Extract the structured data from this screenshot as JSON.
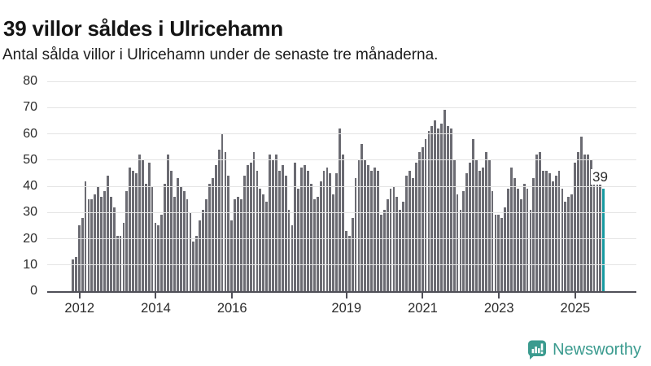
{
  "header": {
    "title": "39 villor såldes i Ulricehamn",
    "subtitle": "Antal sålda villor i Ulricehamn under de senaste tre månaderna."
  },
  "chart_data": {
    "type": "bar",
    "title": "39 villor såldes i Ulricehamn",
    "subtitle": "Antal sålda villor i Ulricehamn under de senaste tre månaderna.",
    "xlabel": "",
    "ylabel": "",
    "ylim": [
      0,
      80
    ],
    "y_ticks": [
      0,
      10,
      20,
      30,
      40,
      50,
      60,
      70,
      80
    ],
    "grid": "horizontal",
    "x_tick_labels": [
      "2012",
      "2014",
      "2016",
      "2019",
      "2021",
      "2023",
      "2025"
    ],
    "x_tick_indices": [
      2,
      26,
      50,
      86,
      110,
      134,
      158
    ],
    "values": [
      12,
      13,
      25,
      28,
      42,
      35,
      35,
      37,
      40,
      36,
      38,
      44,
      36,
      32,
      21,
      21,
      26,
      38,
      47,
      46,
      45,
      52,
      50,
      41,
      49,
      40,
      26,
      25,
      29,
      41,
      52,
      46,
      36,
      43,
      40,
      38,
      35,
      30,
      19,
      21,
      27,
      31,
      35,
      41,
      43,
      48,
      54,
      60,
      53,
      44,
      27,
      35,
      36,
      35,
      44,
      48,
      49,
      53,
      46,
      39,
      37,
      34,
      52,
      50,
      52,
      46,
      48,
      44,
      31,
      25,
      49,
      39,
      47,
      48,
      46,
      41,
      35,
      36,
      42,
      46,
      47,
      45,
      37,
      45,
      62,
      52,
      23,
      21,
      28,
      43,
      50,
      56,
      50,
      48,
      46,
      47,
      46,
      29,
      31,
      35,
      39,
      40,
      36,
      31,
      34,
      44,
      46,
      43,
      49,
      53,
      55,
      58,
      61,
      63,
      65,
      62,
      64,
      69,
      63,
      62,
      50,
      37,
      31,
      38,
      45,
      49,
      58,
      50,
      46,
      47,
      53,
      50,
      38,
      29,
      29,
      28,
      32,
      39,
      47,
      43,
      39,
      35,
      41,
      39,
      31,
      43,
      52,
      53,
      46,
      46,
      45,
      42,
      44,
      46,
      39,
      34,
      36,
      37,
      49,
      53,
      59,
      52,
      52,
      50,
      42,
      42,
      42,
      39
    ],
    "highlight_last": true,
    "annotation": "39",
    "annotation_value": 39,
    "bar_color": "#6b6b72",
    "highlight_color": "#189aa1",
    "legend": "none"
  },
  "footer": {
    "brand": "Newsworthy",
    "brand_color": "#3b9b8f",
    "logo_icon": "newsworthy-bubble-chart-icon"
  }
}
